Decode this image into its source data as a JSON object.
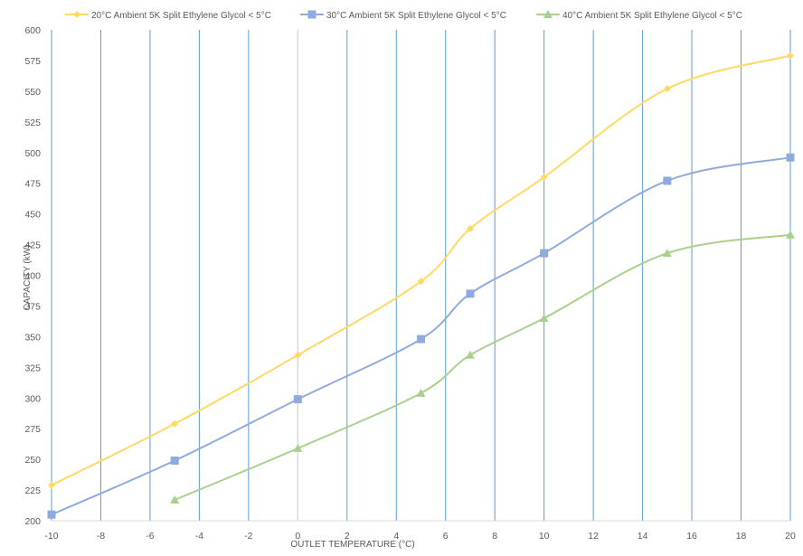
{
  "chart_data": {
    "type": "line",
    "title": "",
    "xlabel": "OUTLET TEMPERATURE (°C)",
    "ylabel": "CAPACITY (kW)",
    "xlim": [
      -10,
      20
    ],
    "ylim": [
      200,
      600
    ],
    "x_ticks": [
      -10,
      -8,
      -6,
      -4,
      -2,
      0,
      2,
      4,
      6,
      8,
      10,
      12,
      14,
      16,
      18,
      20
    ],
    "y_ticks": [
      200,
      225,
      250,
      275,
      300,
      325,
      350,
      375,
      400,
      425,
      450,
      475,
      500,
      525,
      550,
      575,
      600
    ],
    "grid": {
      "vertical": true,
      "horizontal": false,
      "vertical_color": "#5b9bd5",
      "zero_line_color": "#d9d9d9"
    },
    "legend_position": "top",
    "series": [
      {
        "name": "20°C Ambient  5K Split Ethylene Glycol < 5°C",
        "color": "#ffd966",
        "marker": "diamond",
        "x": [
          -10,
          -5,
          0,
          5,
          7,
          10,
          15,
          20
        ],
        "y": [
          229,
          279,
          335,
          395,
          438,
          480,
          552,
          579
        ]
      },
      {
        "name": "30°C Ambient  5K Split Ethylene Glycol < 5°C",
        "color": "#8faadc",
        "marker": "square",
        "x": [
          -10,
          -5,
          0,
          5,
          7,
          10,
          15,
          20
        ],
        "y": [
          205,
          249,
          299,
          348,
          385,
          418,
          477,
          496
        ]
      },
      {
        "name": "40°C Ambient  5K Split Ethylene Glycol < 5°C",
        "color": "#a9d18e",
        "marker": "triangle",
        "x": [
          -5,
          0,
          5,
          7,
          10,
          15,
          20
        ],
        "y": [
          217,
          259,
          304,
          335,
          365,
          418,
          433
        ]
      }
    ]
  }
}
